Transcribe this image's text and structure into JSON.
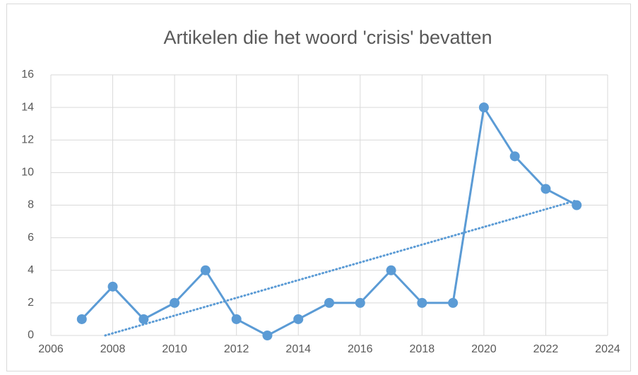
{
  "chart_data": {
    "type": "line",
    "title": "Artikelen die het woord 'crisis' bevatten",
    "x": [
      2007,
      2008,
      2009,
      2010,
      2011,
      2012,
      2013,
      2014,
      2015,
      2016,
      2017,
      2018,
      2019,
      2020,
      2021,
      2022,
      2023
    ],
    "series": [
      {
        "color": "#5b9bd5",
        "values": [
          1,
          3,
          1,
          2,
          4,
          1,
          0,
          1,
          2,
          2,
          4,
          2,
          2,
          14,
          11,
          9,
          8
        ]
      }
    ],
    "xlim": [
      2006,
      2024
    ],
    "xticks": [
      2006,
      2008,
      2010,
      2012,
      2014,
      2016,
      2018,
      2020,
      2022,
      2024
    ],
    "ylim": [
      0,
      16
    ],
    "yticks": [
      0,
      2,
      4,
      6,
      8,
      10,
      12,
      14,
      16
    ],
    "grid": true,
    "trendline": "linear"
  }
}
